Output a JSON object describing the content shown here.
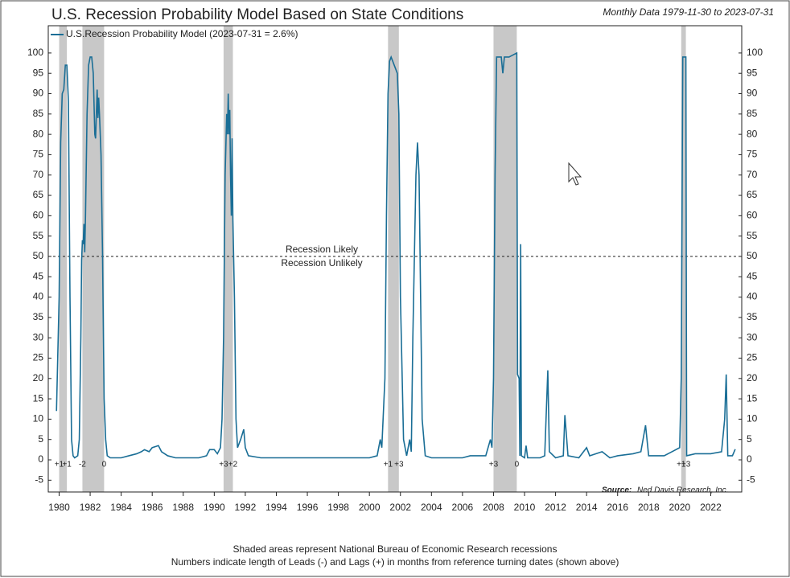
{
  "chart_data": {
    "type": "line",
    "title": "U.S. Recession Probability Model Based on State Conditions",
    "subtitle": "Monthly Data 1979-11-30 to 2023-07-31",
    "x": [
      1979.83,
      1980.0,
      1980.1,
      1980.2,
      1980.3,
      1980.4,
      1980.5,
      1980.6,
      1980.7,
      1980.8,
      1980.9,
      1981.0,
      1981.2,
      1981.3,
      1981.4,
      1981.45,
      1981.5,
      1981.55,
      1981.6,
      1981.65,
      1981.7,
      1981.8,
      1981.9,
      1982.0,
      1982.1,
      1982.2,
      1982.3,
      1982.35,
      1982.4,
      1982.45,
      1982.5,
      1982.55,
      1982.6,
      1982.7,
      1982.8,
      1982.9,
      1983.0,
      1983.1,
      1983.3,
      1984.0,
      1984.5,
      1985.0,
      1985.3,
      1985.5,
      1985.8,
      1986.0,
      1986.4,
      1986.6,
      1987.0,
      1987.5,
      1988.0,
      1989.0,
      1989.5,
      1989.7,
      1990.0,
      1990.2,
      1990.4,
      1990.5,
      1990.6,
      1990.7,
      1990.8,
      1990.85,
      1990.9,
      1990.95,
      1991.0,
      1991.05,
      1991.1,
      1991.15,
      1991.2,
      1991.3,
      1991.4,
      1991.5,
      1991.7,
      1991.9,
      1992.0,
      1992.2,
      1993.0,
      1995.0,
      1997.0,
      1999.0,
      2000.0,
      2000.5,
      2000.7,
      2000.8,
      2001.0,
      2001.1,
      2001.2,
      2001.3,
      2001.4,
      2001.6,
      2001.8,
      2001.9,
      2002.0,
      2002.2,
      2002.4,
      2002.6,
      2002.7,
      2002.8,
      2003.0,
      2003.1,
      2003.2,
      2003.4,
      2003.6,
      2004.0,
      2005.0,
      2006.0,
      2006.5,
      2007.0,
      2007.5,
      2007.8,
      2007.9,
      2008.0,
      2008.1,
      2008.2,
      2008.5,
      2008.6,
      2008.7,
      2009.0,
      2009.5,
      2009.55,
      2009.65,
      2009.7,
      2009.75,
      2009.8,
      2010.0,
      2010.1,
      2010.2,
      2011.0,
      2011.3,
      2011.5,
      2011.6,
      2012.0,
      2012.5,
      2012.6,
      2012.8,
      2013.5,
      2014.0,
      2014.2,
      2015.0,
      2015.5,
      2016.0,
      2017.0,
      2017.5,
      2017.8,
      2018.0,
      2019.0,
      2019.5,
      2020.0,
      2020.1,
      2020.2,
      2020.4,
      2020.45,
      2021.0,
      2022.0,
      2022.7,
      2022.9,
      2023.0,
      2023.1,
      2023.4,
      2023.58
    ],
    "series": [
      {
        "name": "U.S.Recession Probability Model (2023-07-31 = 2.6%)",
        "color": "#1a6e96",
        "values": [
          12,
          40,
          78,
          90,
          91,
          97,
          97,
          88,
          40,
          5,
          1,
          0.5,
          1,
          5,
          30,
          49,
          54,
          53,
          58,
          51,
          60,
          85,
          97,
          99,
          99,
          95,
          80,
          79,
          85,
          91,
          84,
          89,
          85,
          75,
          50,
          15,
          5,
          1,
          0.5,
          0.5,
          1,
          1.5,
          2,
          2.5,
          2,
          3,
          3.5,
          2,
          1,
          0.5,
          0.5,
          0.5,
          1,
          2.5,
          2.5,
          1.5,
          3,
          10,
          30,
          70,
          85,
          80,
          90,
          80,
          86,
          70,
          60,
          79,
          59,
          40,
          10,
          3,
          5,
          7.5,
          3,
          1,
          0.5,
          0.5,
          0.5,
          0.5,
          0.5,
          1,
          5,
          3,
          20,
          60,
          90,
          98,
          99,
          97,
          95,
          85,
          40,
          5,
          1,
          5,
          2,
          30,
          70,
          78,
          70,
          10,
          1,
          0.5,
          0.5,
          0.5,
          1,
          1,
          1,
          5,
          3,
          20,
          70,
          99,
          99,
          95,
          99,
          99,
          100,
          21,
          20,
          1,
          53,
          1,
          0.5,
          3.5,
          0.5,
          0.5,
          1,
          22,
          2,
          0.5,
          1,
          11,
          1,
          0.5,
          3,
          1,
          2,
          0.5,
          1,
          1.5,
          2,
          8.5,
          1,
          1,
          2,
          3,
          20,
          99,
          99,
          1,
          1.5,
          1.5,
          2,
          10,
          21,
          1,
          1,
          2.6
        ]
      }
    ],
    "xlim": [
      1979.3,
      2024.0
    ],
    "xticks": [
      1980,
      1982,
      1984,
      1986,
      1988,
      1990,
      1992,
      1994,
      1996,
      1998,
      2000,
      2002,
      2004,
      2006,
      2008,
      2010,
      2012,
      2014,
      2016,
      2018,
      2020,
      2022
    ],
    "ylim": [
      -7.9,
      106.7
    ],
    "yticks": [
      -5,
      0,
      5,
      10,
      15,
      20,
      25,
      30,
      35,
      40,
      45,
      50,
      55,
      60,
      65,
      70,
      75,
      80,
      85,
      90,
      95,
      100
    ],
    "recession_color": "#c8c8c8",
    "recessions": [
      {
        "start": 1980.0,
        "end": 1980.5,
        "start_label": "+1",
        "end_label": "+1"
      },
      {
        "start": 1981.5,
        "end": 1982.9,
        "start_label": "-2",
        "end_label": "0"
      },
      {
        "start": 1990.6,
        "end": 1991.2,
        "start_label": "+3",
        "end_label": "+2"
      },
      {
        "start": 2001.2,
        "end": 2001.9,
        "start_label": "+1",
        "end_label": "+3"
      },
      {
        "start": 2008.0,
        "end": 2009.5,
        "start_label": "+3",
        "end_label": "0"
      },
      {
        "start": 2020.1,
        "end": 2020.4,
        "start_label": "+1",
        "end_label": "+3"
      }
    ],
    "reference_line": {
      "value": 50,
      "label_above": "Recession Likely",
      "label_below": "Recession Unlikely"
    },
    "source_label": "Source:",
    "source": "Ned Davis Research, Inc.",
    "footnotes": [
      "Shaded areas represent National Bureau of Economic Research recessions",
      "Numbers indicate length of Leads (-) and Lags (+) in months from reference turning dates (shown above)"
    ]
  }
}
